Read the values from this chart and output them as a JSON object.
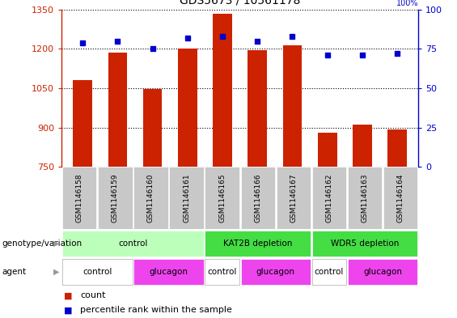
{
  "title": "GDS5673 / 10561178",
  "samples": [
    "GSM1146158",
    "GSM1146159",
    "GSM1146160",
    "GSM1146161",
    "GSM1146165",
    "GSM1146166",
    "GSM1146167",
    "GSM1146162",
    "GSM1146163",
    "GSM1146164"
  ],
  "counts": [
    1080,
    1185,
    1047,
    1200,
    1335,
    1195,
    1215,
    880,
    910,
    893
  ],
  "percentile_ranks": [
    79,
    80,
    75,
    82,
    83,
    80,
    83,
    71,
    71,
    72
  ],
  "ylim_left": [
    750,
    1350
  ],
  "ylim_right": [
    0,
    100
  ],
  "yticks_left": [
    750,
    900,
    1050,
    1200,
    1350
  ],
  "yticks_right": [
    0,
    25,
    50,
    75,
    100
  ],
  "bar_color": "#CC2200",
  "dot_color": "#0000CC",
  "genotype_groups": [
    {
      "label": "control",
      "start": 0,
      "end": 4,
      "color": "#CCFFCC"
    },
    {
      "label": "KAT2B depletion",
      "start": 4,
      "end": 7,
      "color": "#44EE44"
    },
    {
      "label": "WDR5 depletion",
      "start": 7,
      "end": 10,
      "color": "#44EE44"
    }
  ],
  "agent_groups": [
    {
      "label": "control",
      "start": 0,
      "end": 2,
      "color": "#FFFFFF"
    },
    {
      "label": "glucagon",
      "start": 2,
      "end": 4,
      "color": "#EE44EE"
    },
    {
      "label": "control",
      "start": 4,
      "end": 5,
      "color": "#FFFFFF"
    },
    {
      "label": "glucagon",
      "start": 5,
      "end": 7,
      "color": "#EE44EE"
    },
    {
      "label": "control",
      "start": 7,
      "end": 8,
      "color": "#FFFFFF"
    },
    {
      "label": "glucagon",
      "start": 8,
      "end": 10,
      "color": "#EE44EE"
    }
  ]
}
